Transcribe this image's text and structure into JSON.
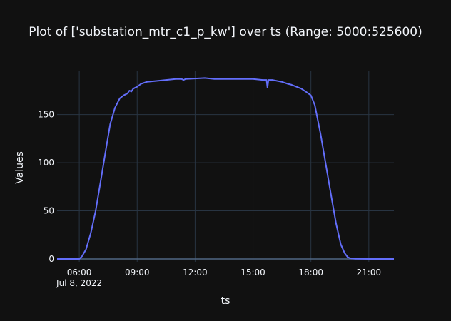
{
  "chart_data": {
    "type": "line",
    "title": "Plot of ['substation_mtr_c1_p_kw'] over ts (Range: 5000:525600)",
    "xlabel": "ts",
    "ylabel": "Values",
    "x_unit": "hours of day, Jul 8, 2022",
    "xlim": [
      4.85,
      22.3
    ],
    "ylim": [
      -3,
      195
    ],
    "x_ticks": [
      {
        "value": 6,
        "label": "06:00",
        "sublabel": "Jul 8, 2022"
      },
      {
        "value": 9,
        "label": "09:00"
      },
      {
        "value": 12,
        "label": "12:00"
      },
      {
        "value": 15,
        "label": "15:00"
      },
      {
        "value": 18,
        "label": "18:00"
      },
      {
        "value": 21,
        "label": "21:00"
      }
    ],
    "y_ticks": [
      0,
      50,
      100,
      150
    ],
    "colors": {
      "background": "#111111",
      "grid": "#283442",
      "line": "#636efa",
      "text": "#f2f5fa"
    },
    "series": [
      {
        "color": "#636efa",
        "x": [
          4.85,
          5.5,
          6.0,
          6.15,
          6.35,
          6.6,
          6.85,
          7.1,
          7.35,
          7.6,
          7.85,
          8.1,
          8.3,
          8.5,
          8.6,
          8.7,
          8.8,
          8.9,
          9.0,
          9.2,
          9.5,
          10.0,
          10.5,
          11.0,
          11.3,
          11.4,
          11.5,
          12.0,
          12.5,
          13.0,
          13.5,
          14.0,
          14.5,
          15.0,
          15.5,
          15.7,
          15.75,
          15.8,
          16.0,
          16.5,
          16.8,
          17.0,
          17.5,
          17.8,
          18.0,
          18.2,
          18.5,
          18.8,
          19.1,
          19.3,
          19.55,
          19.75,
          19.9,
          20.0,
          20.1,
          20.3,
          21.0,
          22.3
        ],
        "y": [
          0,
          0,
          0,
          3,
          10,
          27,
          50,
          80,
          110,
          140,
          157,
          167,
          170,
          172,
          175,
          174,
          177,
          178,
          179,
          182,
          184,
          185,
          186,
          187,
          187,
          186,
          187,
          187.5,
          188,
          187,
          187,
          187,
          187,
          187,
          186,
          186,
          178,
          186,
          186,
          184,
          182,
          181,
          177,
          173,
          170,
          160,
          130,
          95,
          60,
          37,
          15,
          6,
          2,
          1,
          0.5,
          0.2,
          0,
          0
        ]
      }
    ]
  }
}
